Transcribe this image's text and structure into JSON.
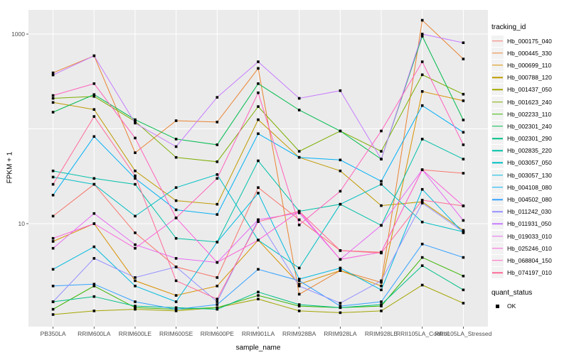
{
  "chart": {
    "y_axis_title": "FPKM + 1",
    "x_axis_title": "sample_name",
    "legend_title": "tracking_id",
    "quant_legend_title": "quant_status"
  },
  "colors": {
    "figure_background": "#FFFFFF",
    "panel_background": "#EBEBEB",
    "gridline": "#FFFFFF",
    "tick_mark": "#333333",
    "tick_label_text": "#4D4D4D",
    "axis_title_text": "#000000",
    "point_marker": "#000000",
    "legend_key_background": "#F2F2F2"
  },
  "chart_data": {
    "type": "line",
    "yscale": "log10",
    "xlabel": "sample_name",
    "ylabel": "FPKM + 1",
    "legend_position": "right",
    "grid": true,
    "gridline_values": [
      10,
      100,
      1000
    ],
    "y_ticks": [
      {
        "label": "1000",
        "value": 1000
      },
      {
        "label": "10",
        "value": 10
      }
    ],
    "ylim_approx": [
      0.85,
      1800
    ],
    "x_categories": [
      "PB350LA",
      "RRIM600LA",
      "RRIM600LE",
      "RRIM600SE",
      "RRIM600PE",
      "RRIM901LA",
      "RRIM928BA",
      "RRIM928LA",
      "RRIM928LE",
      "RRII105LA_Control",
      "RRII105LA_Stressed"
    ],
    "series": [
      {
        "name": "Hb_000175_040",
        "color": "#F8766D",
        "values": [
          12,
          26,
          8,
          3.5,
          2.7,
          24,
          11,
          5.2,
          5.0,
          37,
          34
        ]
      },
      {
        "name": "Hb_000445_330",
        "color": "#EA8331",
        "values": [
          390,
          590,
          56,
          122,
          118,
          435,
          1.8,
          3.2,
          2.4,
          1400,
          546
        ]
      },
      {
        "name": "Hb_000699_110",
        "color": "#D89000",
        "values": [
          6.5,
          10,
          2.5,
          1.75,
          2.2,
          6.7,
          2.3,
          3.2,
          2.2,
          248,
          198
        ]
      },
      {
        "name": "Hb_000788_120",
        "color": "#C09B00",
        "values": [
          190,
          160,
          36,
          17.5,
          16,
          125,
          50,
          36,
          15.5,
          17,
          8.5
        ]
      },
      {
        "name": "Hb_001437_050",
        "color": "#A3A500",
        "values": [
          1.1,
          1.2,
          1.25,
          1.2,
          1.3,
          1.6,
          1.2,
          1.15,
          1.2,
          2.25,
          1.45
        ]
      },
      {
        "name": "Hb_001623_240",
        "color": "#7CAE00",
        "values": [
          210,
          220,
          120,
          50,
          45,
          172,
          58,
          95,
          58,
          372,
          232
        ]
      },
      {
        "name": "Hb_002233_110",
        "color": "#39B600",
        "values": [
          1.25,
          2.2,
          1.3,
          1.25,
          1.3,
          1.75,
          1.35,
          1.3,
          1.35,
          4.4,
          2.8
        ]
      },
      {
        "name": "Hb_002301_240",
        "color": "#00BB4E",
        "values": [
          150,
          230,
          125,
          78,
          68,
          300,
          158,
          95,
          48,
          950,
          124
        ]
      },
      {
        "name": "Hb_002301_290",
        "color": "#00C087",
        "values": [
          1.5,
          1.7,
          1.35,
          1.3,
          1.25,
          1.9,
          1.4,
          1.3,
          1.4,
          3.6,
          2.0
        ]
      },
      {
        "name": "Hb_002835_220",
        "color": "#00C1A9",
        "values": [
          36,
          30,
          26,
          7,
          6.4,
          46,
          13.5,
          16,
          9.6,
          78,
          48
        ]
      },
      {
        "name": "Hb_003057_050",
        "color": "#00BFC4",
        "values": [
          31,
          26,
          12,
          24,
          33,
          6.7,
          3.4,
          16,
          26,
          10.4,
          8.2
        ]
      },
      {
        "name": "Hb_003057_130",
        "color": "#00BAE0",
        "values": [
          3.3,
          5.7,
          2.2,
          1.5,
          6.4,
          21,
          2.6,
          3.4,
          2.0,
          23,
          8.0
        ]
      },
      {
        "name": "Hb_004108_080",
        "color": "#00B0F6",
        "values": [
          20,
          83,
          30,
          14,
          12.5,
          89,
          50,
          47,
          28,
          176,
          92
        ]
      },
      {
        "name": "Hb_004502_080",
        "color": "#35A2FF",
        "values": [
          2.2,
          2.3,
          1.5,
          1.25,
          1.4,
          3.3,
          2.5,
          1.35,
          1.5,
          6.1,
          4.4
        ]
      },
      {
        "name": "Hb_011242_030",
        "color": "#9590FF",
        "values": [
          1.5,
          4.3,
          2.7,
          3.5,
          1.5,
          11,
          2.2,
          1.45,
          2.5,
          16.5,
          8.2
        ]
      },
      {
        "name": "Hb_011931_050",
        "color": "#C77CFF",
        "values": [
          370,
          590,
          115,
          65,
          215,
          510,
          210,
          253,
          48,
          1000,
          810
        ]
      },
      {
        "name": "Hb_019033_010",
        "color": "#E76BF3",
        "values": [
          5.5,
          12.8,
          6,
          4.3,
          3.9,
          11,
          13,
          4.2,
          9.6,
          37,
          10.8
        ]
      },
      {
        "name": "Hb_025246_010",
        "color": "#FA62DB",
        "values": [
          7,
          10,
          5.5,
          11.5,
          3.9,
          6.7,
          13.5,
          4.2,
          5.0,
          37,
          15.4
        ]
      },
      {
        "name": "Hb_068804_150",
        "color": "#FF62BC",
        "values": [
          225,
          300,
          80,
          11.5,
          30,
          240,
          9.7,
          22,
          95,
          510,
          68
        ]
      },
      {
        "name": "Hb_074197_010",
        "color": "#FF6A98",
        "values": [
          26,
          135,
          32,
          2.5,
          1.6,
          10.5,
          13.5,
          5.2,
          4.9,
          17.7,
          15.4
        ]
      }
    ],
    "point_legend": {
      "title": "quant_status",
      "entries": [
        {
          "label": "OK",
          "marker": "black-square"
        }
      ]
    }
  }
}
